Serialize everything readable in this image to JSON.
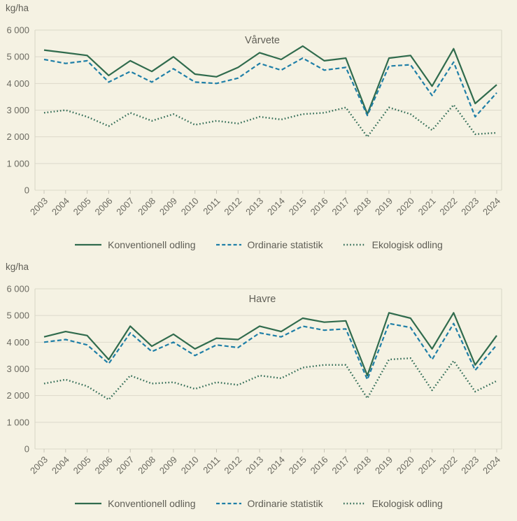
{
  "page_background": "#f5f2e3",
  "colors": {
    "konventionell": "#306b4d",
    "ordinarie": "#1f7fa7",
    "ekologisk": "#306b55",
    "grid": "#dcd9ca",
    "text": "#605f57"
  },
  "legend": [
    {
      "label": "Konventionell odling",
      "style": "solid"
    },
    {
      "label": "Ordinarie statistik",
      "style": "dashed"
    },
    {
      "label": "Ekologisk odling",
      "style": "dotted"
    }
  ],
  "chart_data": [
    {
      "type": "line",
      "title": "Vårvete",
      "ylabel": "kg/ha",
      "ylim": [
        0,
        6000
      ],
      "grid": true,
      "legend_position": "bottom",
      "y_ticks": [
        0,
        1000,
        2000,
        3000,
        4000,
        5000,
        6000
      ],
      "y_tick_labels": [
        "0",
        "1 000",
        "2 000",
        "3 000",
        "4 000",
        "5 000",
        "6 000"
      ],
      "categories": [
        2003,
        2004,
        2005,
        2006,
        2007,
        2008,
        2009,
        2010,
        2011,
        2012,
        2013,
        2014,
        2015,
        2016,
        2017,
        2018,
        2019,
        2020,
        2021,
        2022,
        2023,
        2024
      ],
      "series": [
        {
          "name": "Konventionell odling",
          "style": "solid",
          "color": "#306b4d",
          "values": [
            5250,
            5150,
            5050,
            4300,
            4850,
            4450,
            5000,
            4350,
            4250,
            4600,
            5150,
            4900,
            5400,
            4850,
            4950,
            2850,
            4950,
            5050,
            3900,
            5300,
            3250,
            3950
          ]
        },
        {
          "name": "Ordinarie statistik",
          "style": "dashed",
          "color": "#1f7fa7",
          "values": [
            4900,
            4750,
            4850,
            4050,
            4450,
            4050,
            4550,
            4050,
            4000,
            4200,
            4750,
            4500,
            4950,
            4500,
            4600,
            2800,
            4650,
            4700,
            3550,
            4800,
            2750,
            3650
          ]
        },
        {
          "name": "Ekologisk odling",
          "style": "dotted",
          "color": "#306b55",
          "values": [
            2900,
            3000,
            2750,
            2400,
            2900,
            2600,
            2850,
            2450,
            2600,
            2500,
            2750,
            2650,
            2850,
            2900,
            3100,
            2000,
            3100,
            2850,
            2250,
            3200,
            2100,
            2150
          ]
        }
      ]
    },
    {
      "type": "line",
      "title": "Havre",
      "ylabel": "kg/ha",
      "ylim": [
        0,
        6000
      ],
      "grid": true,
      "legend_position": "bottom",
      "y_ticks": [
        0,
        1000,
        2000,
        3000,
        4000,
        5000,
        6000
      ],
      "y_tick_labels": [
        "0",
        "1 000",
        "2 000",
        "3 000",
        "4 000",
        "5 000",
        "6 000"
      ],
      "categories": [
        2003,
        2004,
        2005,
        2006,
        2007,
        2008,
        2009,
        2010,
        2011,
        2012,
        2013,
        2014,
        2015,
        2016,
        2017,
        2018,
        2019,
        2020,
        2021,
        2022,
        2023,
        2024
      ],
      "series": [
        {
          "name": "Konventionell odling",
          "style": "solid",
          "color": "#306b4d",
          "values": [
            4200,
            4400,
            4250,
            3350,
            4600,
            3850,
            4300,
            3750,
            4150,
            4100,
            4600,
            4400,
            4900,
            4750,
            4800,
            2750,
            5100,
            4900,
            3750,
            5100,
            3150,
            4250
          ]
        },
        {
          "name": "Ordinarie statistik",
          "style": "dashed",
          "color": "#1f7fa7",
          "values": [
            4000,
            4100,
            3900,
            3200,
            4350,
            3650,
            4000,
            3500,
            3900,
            3800,
            4350,
            4200,
            4600,
            4450,
            4500,
            2600,
            4700,
            4550,
            3350,
            4700,
            2950,
            3900
          ]
        },
        {
          "name": "Ekologisk odling",
          "style": "dotted",
          "color": "#306b55",
          "values": [
            2450,
            2600,
            2350,
            1850,
            2750,
            2450,
            2500,
            2250,
            2500,
            2400,
            2750,
            2650,
            3050,
            3150,
            3150,
            1900,
            3350,
            3400,
            2200,
            3300,
            2150,
            2550
          ]
        }
      ]
    }
  ]
}
